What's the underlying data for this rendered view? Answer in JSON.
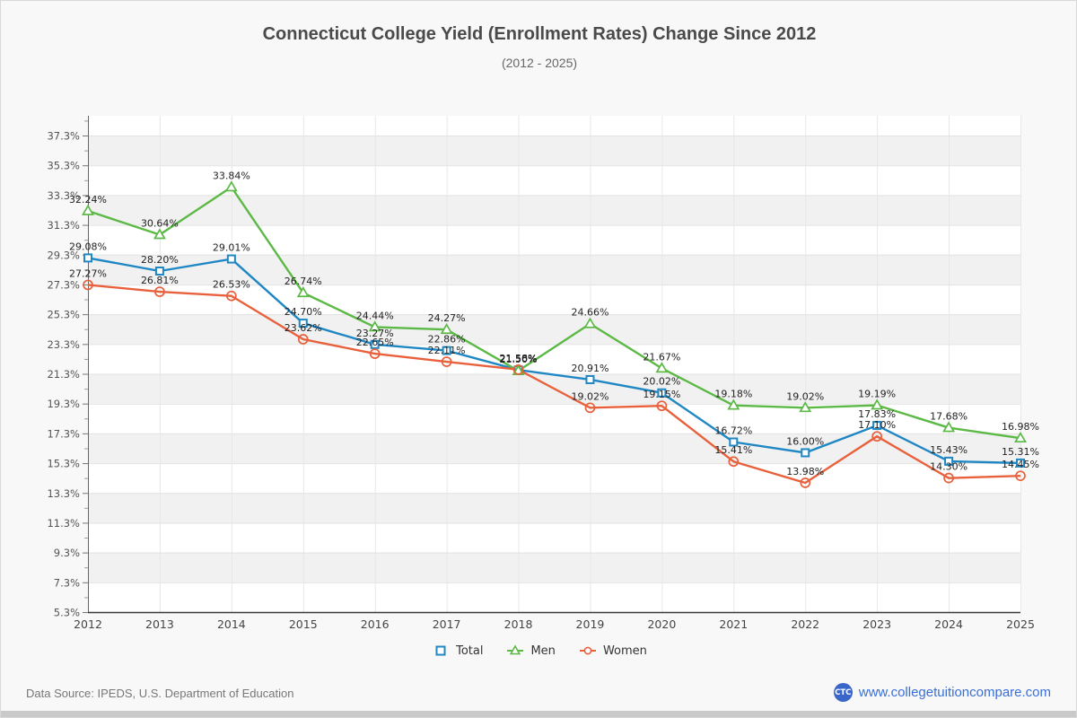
{
  "page": {
    "background": "#f8f8f8",
    "border_color": "#d9d9d9",
    "bottom_bar_color": "#c9c9c9"
  },
  "header": {
    "title": "Connecticut College Yield (Enrollment Rates) Change Since 2012",
    "subtitle": "(2012 - 2025)"
  },
  "chart_data": {
    "type": "line",
    "x": [
      2012,
      2013,
      2014,
      2015,
      2016,
      2017,
      2018,
      2019,
      2020,
      2021,
      2022,
      2023,
      2024,
      2025
    ],
    "series": [
      {
        "name": "Total",
        "color": "#1F87C4",
        "marker": "square",
        "values": [
          29.08,
          28.2,
          29.01,
          24.7,
          23.27,
          22.86,
          21.56,
          20.91,
          20.02,
          16.72,
          16.0,
          17.83,
          15.43,
          15.31
        ]
      },
      {
        "name": "Men",
        "color": "#5CB946",
        "marker": "triangle",
        "values": [
          32.24,
          30.64,
          33.84,
          26.74,
          24.44,
          24.27,
          21.5,
          24.66,
          21.67,
          19.18,
          19.02,
          19.19,
          17.68,
          16.98
        ]
      },
      {
        "name": "Women",
        "color": "#E8613C",
        "marker": "circle",
        "values": [
          27.27,
          26.81,
          26.53,
          23.62,
          22.65,
          22.11,
          21.58,
          19.02,
          19.15,
          15.41,
          13.98,
          17.1,
          14.3,
          14.45
        ]
      }
    ],
    "y_axis": {
      "min": 5.3,
      "max": 38.6,
      "tick_interval": 2,
      "tick_suffix": "%",
      "ticks": [
        "5.3%",
        "7.3%",
        "9.3%",
        "11.3%",
        "13.3%",
        "15.3%",
        "17.3%",
        "19.3%",
        "21.3%",
        "23.3%",
        "25.3%",
        "27.3%",
        "29.3%",
        "31.3%",
        "33.3%",
        "35.3%",
        "37.3%"
      ]
    },
    "grid": {
      "alternate_band_color": "#f1f1f1",
      "plot_background": "#ffffff",
      "h_grid_color": "#e2e2e2",
      "v_grid_color": "#e7e7e7",
      "band_starts": [
        7.3,
        11.3,
        15.3,
        19.3,
        23.3,
        27.3,
        31.3,
        35.3
      ],
      "band_width": 2
    },
    "data_label_color": "#222222",
    "axis_color": "#444444",
    "tick_label_color": "#555555",
    "legend_position": "bottom",
    "title": "Connecticut College Yield (Enrollment Rates) Change Since 2012",
    "subtitle": "(2012 - 2025)"
  },
  "footer": {
    "source": "Data Source: IPEDS, U.S. Department of Education",
    "logo_text": "CTC",
    "logo_color": "#3A66C9",
    "site": "www.collegetuitioncompare.com",
    "link_color": "#3A6FD6"
  }
}
